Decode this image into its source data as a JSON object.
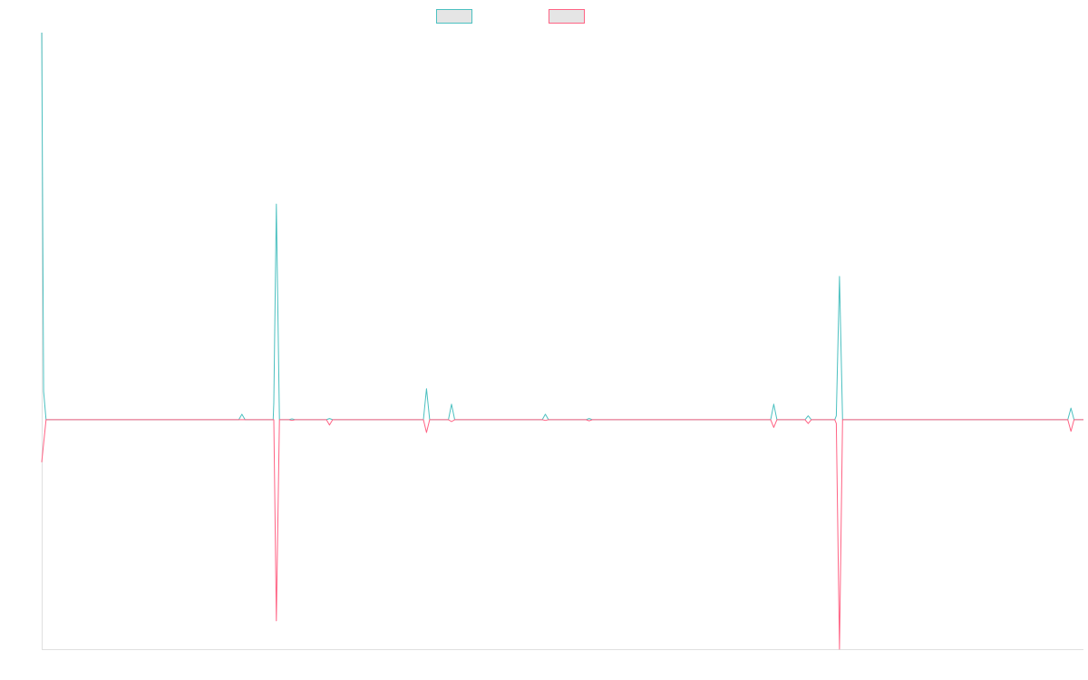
{
  "chart_data": {
    "type": "line",
    "title": "",
    "xlabel": "",
    "ylabel": "",
    "x_range": [
      0,
      333
    ],
    "ylim": [
      -59.3,
      100
    ],
    "grid": false,
    "legend_placement": "top-center",
    "series": [
      {
        "color": "#4bc0c0",
        "legend_fill": "#e5e5e5",
        "points": [
          [
            0,
            100
          ],
          [
            0.6,
            7.3
          ],
          [
            1.4,
            0
          ],
          [
            63,
            0
          ],
          [
            64,
            1.4
          ],
          [
            65,
            0
          ],
          [
            74,
            0
          ],
          [
            74.2,
            4.4
          ],
          [
            75,
            55.7
          ],
          [
            76,
            0
          ],
          [
            79,
            0
          ],
          [
            80,
            0.2
          ],
          [
            81,
            0
          ],
          [
            91,
            0
          ],
          [
            92,
            0.3
          ],
          [
            93,
            0
          ],
          [
            122,
            0
          ],
          [
            123,
            8
          ],
          [
            124,
            0
          ],
          [
            130,
            0
          ],
          [
            131,
            4
          ],
          [
            132,
            0
          ],
          [
            160,
            0
          ],
          [
            161,
            1.4
          ],
          [
            162,
            0
          ],
          [
            174,
            0
          ],
          [
            175,
            0.3
          ],
          [
            176,
            0
          ],
          [
            233,
            0
          ],
          [
            234,
            4
          ],
          [
            235,
            0
          ],
          [
            244,
            0
          ],
          [
            245,
            1
          ],
          [
            246,
            0
          ],
          [
            253.5,
            0
          ],
          [
            254,
            1
          ],
          [
            255,
            37
          ],
          [
            256,
            0
          ],
          [
            328,
            0
          ],
          [
            329,
            3
          ],
          [
            330,
            0
          ],
          [
            333,
            0
          ]
        ]
      },
      {
        "color": "#ff6384",
        "legend_fill": "#e5e5e5",
        "points": [
          [
            0,
            -11
          ],
          [
            1.4,
            0
          ],
          [
            74,
            0
          ],
          [
            74.2,
            0
          ],
          [
            75,
            -52
          ],
          [
            76,
            0
          ],
          [
            79,
            0
          ],
          [
            80,
            -0.2
          ],
          [
            81,
            0
          ],
          [
            91,
            0
          ],
          [
            92,
            -1.4
          ],
          [
            93,
            0
          ],
          [
            122,
            0
          ],
          [
            123,
            -3.3
          ],
          [
            124,
            0
          ],
          [
            130,
            0
          ],
          [
            131,
            -0.5
          ],
          [
            132,
            0
          ],
          [
            160,
            0
          ],
          [
            161,
            -0.2
          ],
          [
            162,
            0
          ],
          [
            174,
            0
          ],
          [
            175,
            -0.3
          ],
          [
            176,
            0
          ],
          [
            233,
            0
          ],
          [
            234,
            -2
          ],
          [
            235,
            0
          ],
          [
            244,
            0
          ],
          [
            245,
            -1
          ],
          [
            246,
            0
          ],
          [
            253.5,
            0
          ],
          [
            254,
            -1
          ],
          [
            255,
            -59.3
          ],
          [
            256,
            0
          ],
          [
            328,
            0
          ],
          [
            329,
            -3
          ],
          [
            330,
            0
          ],
          [
            333,
            0
          ]
        ]
      }
    ]
  }
}
